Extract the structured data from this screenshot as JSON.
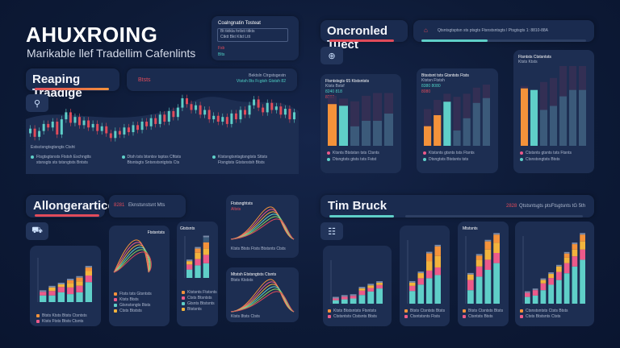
{
  "header": {
    "title": "AHUXROING",
    "subtitle": "Marikable llef Tradellim Cafenlints"
  },
  "top_card": {
    "title": "Coalngnatin Tosteat",
    "line1": "Bt tktkla fotlsti titkts",
    "line2": "Ctktt Bkt Kltd Ltlt",
    "tag1": "Fsb",
    "tag2": "Blts"
  },
  "section1": {
    "title": "Reaping Traadige",
    "note_red": "Btsts",
    "note_line1": "Bektsln Ctrgstsgestn",
    "note_line2": "Vtstsh 8ts Fcgtsh Gtstsh 82",
    "caption": "Estsctsngtsgtsngts Ctsht",
    "bullets": [
      {
        "l1": "Ftsgtsgtsnsts Ftstsh Eschngtts",
        "l2": "stsnsgts sts tstsngtsts Bntsts"
      },
      {
        "l1": "Dtsh tsts btsntsv tsptss Cfttsts",
        "l2": "Btsntsgts Sntsnstsntgtsts Cts"
      },
      {
        "l1": "Ktstsngtsntsgtsngtsts Sttsts",
        "l2": "Ftsngtsts Gtstsnstsh Btsts"
      }
    ],
    "candles": [
      50,
      54,
      47,
      52,
      58,
      55,
      60,
      49,
      62,
      68,
      59,
      64,
      57,
      61,
      55,
      58,
      52,
      56,
      50,
      46,
      52,
      49,
      55,
      51,
      57,
      53,
      60,
      56,
      63,
      58,
      66,
      60,
      69,
      64,
      72,
      80,
      75,
      70,
      74,
      66,
      70,
      62,
      65,
      60,
      64,
      58,
      67,
      62,
      70,
      66,
      74,
      79,
      72,
      68,
      76,
      70,
      73,
      66,
      71,
      62,
      68
    ]
  },
  "section2": {
    "title": "Oncronled Tuect",
    "info": "Qtsntsgtsptsn sts ptsgts Ftsnstsntsgts l Ptsgtsgts 1: 8810-88A",
    "progress": 0.4,
    "panels": [
      {
        "title": "Ftsntstsgts 65 Ktstsntsts",
        "sub": "Ktsts Bstsf",
        "v1": "8240 818",
        "v2": "8282",
        "bars": [
          {
            "v": 0.75,
            "c": "#f4923a"
          },
          {
            "v": 0.72,
            "c": "#5fcfc8"
          },
          {
            "v": 0.35
          },
          {
            "v": 0.45
          },
          {
            "v": 0.45
          },
          {
            "v": 0.58
          }
        ],
        "bg": [
          0.9,
          0.85,
          0.8,
          0.9,
          0.95,
          0.95
        ],
        "legend": [
          "Ktsnts Btststsn tsts Ctsnts",
          "Dtsngtsts gtsts tsts Fstst"
        ]
      },
      {
        "title": "Btsstsnt tsts Gtsntsts Ftsts",
        "sub": "Ktstsn Ftstsh",
        "v1": "8380 8080",
        "v2": "8080",
        "bars": [
          {
            "v": 0.32,
            "c": "#f4923a"
          },
          {
            "v": 0.5,
            "c": "#f4923a"
          },
          {
            "v": 0.72,
            "c": "#5fcfc8"
          },
          {
            "v": 0.25
          },
          {
            "v": 0.45
          },
          {
            "v": 0.7
          },
          {
            "v": 0.78
          }
        ],
        "bg": [
          0.6,
          0.75,
          0.85,
          0.8,
          0.85,
          0.95,
          1.0
        ],
        "legend": [
          "Ktstsnts gtsnts tsts Ftsnts",
          "Dtsngtsts Btstsnts tsts"
        ]
      },
      {
        "title": "Ftsntsts Ctstsntsts",
        "sub": "Ktsts Ktsts",
        "v1": "",
        "v2": "",
        "bars": [
          {
            "v": 0.72,
            "c": "#f4923a"
          },
          {
            "v": 0.7,
            "c": "#5fcfc8"
          },
          {
            "v": 0.45
          },
          {
            "v": 0.5
          },
          {
            "v": 0.62
          },
          {
            "v": 0.7
          },
          {
            "v": 0.7
          }
        ],
        "bg": [
          0.75,
          0.7,
          0.8,
          0.85,
          1.0,
          1.05,
          1.1
        ],
        "legend": [
          "Ctstsnts gtsnts tsts Ftsnts",
          "Ctsnstsngtsts Btsts"
        ]
      }
    ]
  },
  "section3": {
    "title": "Allongerartice",
    "note_red": "8281",
    "note": "Eknstsnstsnt Mts",
    "p1": {
      "title": "",
      "legend": [
        "Btsts Ktsts Btsts Ctsntsts",
        "Ktsts Ftsts Btsts Ctsnts"
      ],
      "stacks": [
        [
          0.15,
          0.08
        ],
        [
          0.15,
          0.1,
          0.08
        ],
        [
          0.22,
          0.12,
          0.06
        ],
        [
          0.18,
          0.15,
          0.1,
          0.06
        ],
        [
          0.22,
          0.15,
          0.1,
          0.08
        ],
        [
          0.45,
          0.15,
          0.1,
          0.08
        ]
      ]
    },
    "p2": {
      "title": "Ftstsntsts",
      "legend": [
        "Ftsts tsts Gtsntsts",
        "Ktsts Btsts",
        "Gtsnstsngts 8tsts",
        "Ctsts Btststs"
      ]
    },
    "p3": {
      "title": "Gtstsnts",
      "legend": [
        "Ktstsnts Ftstsnts",
        "Ctsts Btsntsts",
        "Gtsnts Btstsnts",
        "Btstsnts"
      ],
      "stacks": [
        [
          0.2,
          0.12,
          0.08
        ],
        [
          0.3,
          0.15,
          0.15,
          0.1
        ],
        [
          0.35,
          0.2,
          0.15,
          0.15,
          0.12
        ]
      ]
    },
    "p4": {
      "title": "Ftstsnghtsts",
      "sub": "Altsts",
      "legend": "Ktsts Btsts Ftsts Btstsnts Ctsts"
    },
    "p5": {
      "title": "Mtstsh Etstsngtsts Ctsnts",
      "sub": "Btsts Ktststs",
      "legend": "Ktsts 8tsts Ctsts"
    }
  },
  "section4": {
    "title": "Tim Bruck",
    "note_red": "2828",
    "note": "Qtstsntsgts ptsFtsgtsnts tG 5th",
    "panels": [
      {
        "title": "",
        "legend": [
          "Ktsts Btstsntsts Ftsntsts",
          "Ctstsntsts Ctstsnts Btsts"
        ],
        "stacks": [
          [
            0.08,
            0.04
          ],
          [
            0.1,
            0.06
          ],
          [
            0.12,
            0.06
          ],
          [
            0.2,
            0.1,
            0.05
          ],
          [
            0.28,
            0.08,
            0.06
          ],
          [
            0.35,
            0.08,
            0.05
          ]
        ]
      },
      {
        "title": "",
        "legend": [
          "Btsts Ctsntsts Btsts",
          "Ctsntstsnts Ftsts"
        ],
        "stacks": [
          [
            0.2,
            0.08,
            0.05
          ],
          [
            0.3,
            0.1,
            0.08
          ],
          [
            0.4,
            0.12,
            0.15,
            0.12
          ],
          [
            0.45,
            0.12,
            0.18,
            0.15
          ]
        ]
      },
      {
        "title": "Mtstsnts",
        "legend": [
          "Btsts Ctsntsts Btsts",
          "Ctsntsts Btsts"
        ],
        "stacks": [
          [
            0.2,
            0.15,
            0.08
          ],
          [
            0.4,
            0.15,
            0.1,
            0.06
          ],
          [
            0.5,
            0.15,
            0.15,
            0.12
          ],
          [
            0.6,
            0.15,
            0.15,
            0.12
          ]
        ]
      },
      {
        "title": "",
        "legend": [
          "Ctsnstsntsts Ctsts Btsts",
          "Ctsts Btstsnts Ctsts"
        ],
        "stacks": [
          [
            0.1,
            0.06
          ],
          [
            0.12,
            0.08
          ],
          [
            0.2,
            0.1,
            0.05
          ],
          [
            0.28,
            0.1,
            0.06
          ],
          [
            0.35,
            0.12,
            0.08
          ],
          [
            0.45,
            0.15,
            0.08,
            0.06
          ],
          [
            0.55,
            0.15,
            0.1,
            0.08
          ],
          [
            0.65,
            0.15,
            0.12,
            0.1
          ]
        ]
      }
    ]
  },
  "colors": {
    "accent_red": "#e14b5a",
    "accent_orange": "#f4923a",
    "accent_teal": "#5fcfc8",
    "accent_yellow": "#f2b33d",
    "accent_pink": "#ec5a8a",
    "bar_muted": "#3b5a7a",
    "bg": "#0d1a36"
  }
}
